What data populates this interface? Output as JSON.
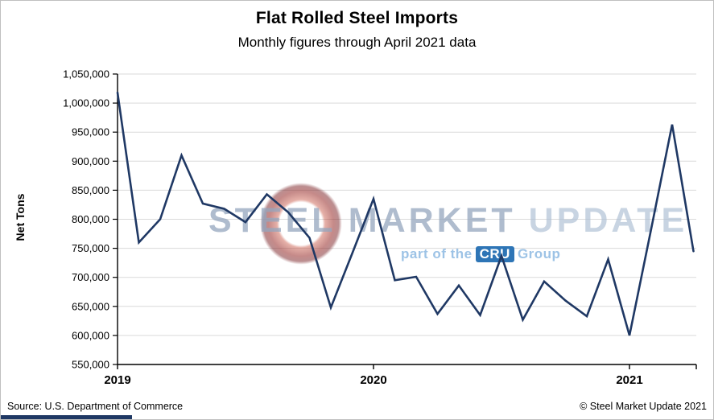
{
  "footer": {
    "source": "Source: U.S. Department of Commerce",
    "copyright": "© Steel Market Update 2021"
  },
  "watermark": {
    "steel_market": "STEEL MARKET",
    "update": "UPDATE",
    "part_of": "part of the",
    "cru": "CRU",
    "group": "Group"
  },
  "colors": {
    "line": "#1f3864",
    "grid": "#d9d9d9",
    "axis": "#000000",
    "accent_bar": "#1f3864",
    "cru_box": "#2e75b6",
    "watermark_blue": "#9dc3e6",
    "logo_red": "#962a28"
  },
  "chart_data": {
    "type": "line",
    "title": "Flat Rolled Steel Imports",
    "subtitle": "Monthly figures through April 2021 data",
    "ylabel": "Net Tons",
    "xlabel": "",
    "ylim": [
      550000,
      1050000
    ],
    "ytick_step": 50000,
    "grid": "horizontal",
    "legend": "none",
    "line_color": "#1f3864",
    "categories": [
      "Jan 2019",
      "Feb 2019",
      "Mar 2019",
      "Apr 2019",
      "May 2019",
      "Jun 2019",
      "Jul 2019",
      "Aug 2019",
      "Sep 2019",
      "Oct 2019",
      "Nov 2019",
      "Dec 2019",
      "Jan 2020",
      "Feb 2020",
      "Mar 2020",
      "Apr 2020",
      "May 2020",
      "Jun 2020",
      "Jul 2020",
      "Aug 2020",
      "Sep 2020",
      "Oct 2020",
      "Nov 2020",
      "Dec 2020",
      "Jan 2021",
      "Feb 2021",
      "Mar 2021",
      "Apr 2021"
    ],
    "values": [
      1018000,
      760000,
      800000,
      910000,
      827000,
      818000,
      795000,
      843000,
      812000,
      768000,
      648000,
      741000,
      835000,
      695000,
      701000,
      637000,
      686000,
      635000,
      737000,
      627000,
      693000,
      660000,
      633000,
      731000,
      600000,
      780000,
      963000,
      745000
    ],
    "year_ticks": [
      {
        "label": "2019",
        "month_index": 0
      },
      {
        "label": "2020",
        "month_index": 12
      },
      {
        "label": "2021",
        "month_index": 24
      }
    ]
  }
}
